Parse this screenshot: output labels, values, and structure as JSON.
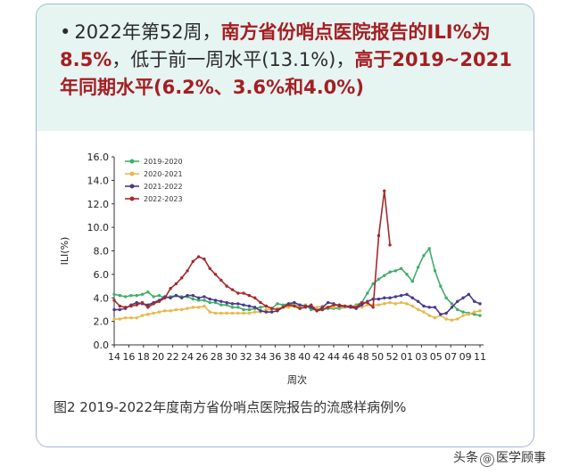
{
  "header": {
    "bullet": "•",
    "part1": "2022年第52周，",
    "part2": "南方省份哨点医院报告的ILI%为8.5%",
    "part3": "，低于前一周水平(13.1%)，",
    "part4": "高于2019~2021年同期水平(6.2%、3.6%和4.0%)"
  },
  "caption": "图2 2019-2022年度南方省份哨点医院报告的流感样病例%",
  "watermark": {
    "prefix": "头条",
    "at": "@",
    "name": "医学顾事"
  },
  "colors": {
    "s2019": "#3fae6a",
    "s2020": "#e8b84a",
    "s2021": "#4a3a8a",
    "s2022": "#a8282c",
    "header_bg": "#e6f4f2",
    "highlight": "#a51e22"
  },
  "chart_data": {
    "type": "line",
    "ylabel": "ILI(%)",
    "xlabel": "周次",
    "ylim": [
      0,
      16
    ],
    "yticks": [
      "0.0",
      "2.0",
      "4.0",
      "6.0",
      "8.0",
      "10.0",
      "12.0",
      "14.0",
      "16.0"
    ],
    "x_tick_labels": [
      "14",
      "16",
      "18",
      "20",
      "22",
      "24",
      "26",
      "28",
      "30",
      "32",
      "34",
      "36",
      "38",
      "40",
      "42",
      "44",
      "46",
      "48",
      "50",
      "52",
      "01",
      "03",
      "05",
      "07",
      "09",
      "11"
    ],
    "legend_position": "top-left",
    "series": [
      {
        "name": "2019-2020",
        "color": "#3fae6a",
        "values": [
          4.3,
          4.2,
          4.1,
          4.2,
          4.2,
          4.3,
          4.5,
          4.1,
          4.2,
          4.0,
          4.1,
          4.2,
          4.1,
          4.1,
          3.9,
          3.8,
          3.8,
          3.6,
          3.6,
          3.4,
          3.4,
          3.2,
          3.2,
          3.0,
          3.0,
          3.1,
          3.2,
          3.3,
          3.1,
          3.5,
          3.4,
          3.5,
          3.4,
          3.3,
          3.4,
          3.0,
          3.0,
          3.0,
          3.1,
          3.1,
          3.1,
          3.2,
          3.2,
          3.4,
          3.6,
          4.4,
          5.2,
          5.6,
          5.9,
          6.2,
          6.3,
          6.5,
          6.0,
          5.4,
          6.6,
          7.6,
          8.2,
          6.3,
          5.0,
          4.0,
          3.5,
          3.0,
          2.8,
          2.7,
          2.6,
          2.5
        ]
      },
      {
        "name": "2020-2021",
        "color": "#e8b84a",
        "values": [
          2.2,
          2.2,
          2.3,
          2.3,
          2.3,
          2.5,
          2.6,
          2.7,
          2.8,
          2.9,
          2.9,
          3.0,
          3.0,
          3.1,
          3.2,
          3.2,
          3.3,
          2.8,
          2.7,
          2.7,
          2.7,
          2.7,
          2.7,
          2.7,
          2.7,
          2.8,
          2.8,
          3.0,
          3.0,
          3.1,
          3.2,
          3.2,
          3.4,
          3.2,
          3.4,
          3.2,
          3.2,
          3.3,
          3.2,
          3.2,
          3.2,
          3.2,
          3.3,
          3.3,
          3.2,
          3.4,
          3.4,
          3.4,
          3.5,
          3.6,
          3.5,
          3.6,
          3.5,
          3.3,
          3.0,
          2.8,
          2.5,
          2.3,
          2.5,
          2.2,
          2.1,
          2.2,
          2.5,
          2.6,
          2.8,
          2.9
        ]
      },
      {
        "name": "2021-2022",
        "color": "#4a3a8a",
        "values": [
          3.0,
          3.0,
          3.1,
          3.4,
          3.6,
          3.5,
          3.4,
          3.6,
          3.8,
          4.1,
          4.0,
          4.2,
          4.0,
          4.2,
          4.2,
          4.0,
          4.1,
          3.9,
          3.8,
          3.7,
          3.6,
          3.5,
          3.5,
          3.4,
          3.3,
          3.2,
          2.9,
          2.8,
          2.8,
          2.9,
          3.2,
          3.5,
          3.6,
          3.4,
          3.3,
          3.2,
          2.9,
          3.2,
          3.6,
          3.5,
          3.3,
          3.3,
          3.2,
          3.1,
          3.4,
          3.7,
          3.9,
          3.9,
          4.0,
          4.0,
          4.1,
          4.2,
          4.3,
          4.0,
          3.7,
          3.3,
          3.2,
          3.2,
          2.6,
          2.7,
          3.2,
          3.7,
          4.0,
          4.3,
          3.7,
          3.5
        ]
      },
      {
        "name": "2022-2023",
        "color": "#a8282c",
        "values": [
          3.8,
          3.3,
          3.2,
          3.3,
          3.4,
          3.6,
          3.2,
          3.5,
          3.7,
          4.0,
          4.8,
          5.2,
          5.7,
          6.3,
          7.1,
          7.5,
          7.3,
          6.5,
          6.0,
          5.5,
          5.0,
          4.7,
          4.4,
          4.4,
          4.2,
          4.0,
          3.6,
          3.3,
          3.1,
          3.0,
          3.2,
          3.4,
          3.3,
          3.1,
          3.2,
          3.4,
          2.9,
          3.0,
          3.2,
          3.4,
          3.4,
          3.3,
          3.3,
          3.2,
          3.6,
          3.6,
          3.2,
          9.3,
          13.1,
          8.5
        ]
      }
    ]
  }
}
